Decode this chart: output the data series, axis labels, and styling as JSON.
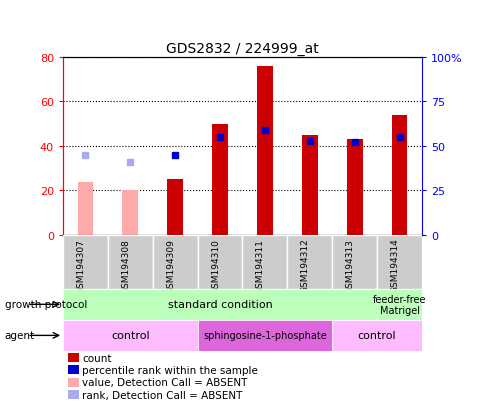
{
  "title": "GDS2832 / 224999_at",
  "samples": [
    "GSM194307",
    "GSM194308",
    "GSM194309",
    "GSM194310",
    "GSM194311",
    "GSM194312",
    "GSM194313",
    "GSM194314"
  ],
  "count_values": [
    24,
    20,
    25,
    50,
    76,
    45,
    43,
    54
  ],
  "count_absent": [
    true,
    true,
    false,
    false,
    false,
    false,
    false,
    false
  ],
  "rank_values": [
    45,
    41,
    45,
    55,
    59,
    53,
    52,
    55
  ],
  "rank_absent": [
    true,
    true,
    false,
    false,
    false,
    false,
    false,
    false
  ],
  "left_ylim": [
    0,
    80
  ],
  "right_ylim": [
    0,
    100
  ],
  "left_yticks": [
    0,
    20,
    40,
    60,
    80
  ],
  "right_yticks": [
    0,
    25,
    50,
    75,
    100
  ],
  "right_yticklabels": [
    "0",
    "25",
    "50",
    "75",
    "100%"
  ],
  "bar_color_present": "#cc0000",
  "bar_color_absent": "#ffaaaa",
  "dot_color_present": "#0000cc",
  "dot_color_absent": "#aaaaee",
  "bar_width": 0.35,
  "growth_protocol_groups": [
    {
      "label": "standard condition",
      "start": 0,
      "end": 7,
      "color": "#bbffbb"
    },
    {
      "label": "feeder-free\nMatrigel",
      "start": 7,
      "end": 8,
      "color": "#bbffbb"
    }
  ],
  "agent_groups": [
    {
      "label": "control",
      "start": 0,
      "end": 3,
      "color": "#ffbbff"
    },
    {
      "label": "sphingosine-1-phosphate",
      "start": 3,
      "end": 6,
      "color": "#dd66dd"
    },
    {
      "label": "control",
      "start": 6,
      "end": 8,
      "color": "#ffbbff"
    }
  ],
  "legend_items": [
    {
      "color": "#cc0000",
      "label": "count",
      "marker": "s"
    },
    {
      "color": "#0000cc",
      "label": "percentile rank within the sample",
      "marker": "s"
    },
    {
      "color": "#ffaaaa",
      "label": "value, Detection Call = ABSENT",
      "marker": "s"
    },
    {
      "color": "#aaaaee",
      "label": "rank, Detection Call = ABSENT",
      "marker": "s"
    }
  ],
  "sample_box_color": "#cccccc",
  "fig_width": 4.85,
  "fig_height": 4.14,
  "fig_dpi": 100
}
